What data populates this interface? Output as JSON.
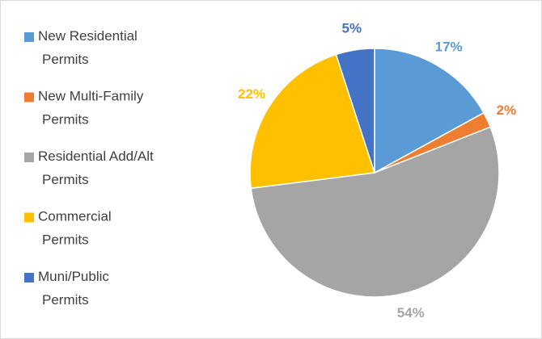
{
  "chart_data": {
    "type": "pie",
    "categories": [
      "New Residential Permits",
      "New Multi-Family Permits",
      "Residential Add/Alt Permits",
      "Commercial Permits",
      "Muni/Public Permits"
    ],
    "values": [
      17,
      2,
      54,
      22,
      5
    ],
    "value_labels": [
      "17%",
      "2%",
      "54%",
      "22%",
      "5%"
    ],
    "colors": [
      "#5b9bd5",
      "#ed7d31",
      "#a5a5a5",
      "#ffc000",
      "#4472c4"
    ],
    "legend": "left"
  }
}
